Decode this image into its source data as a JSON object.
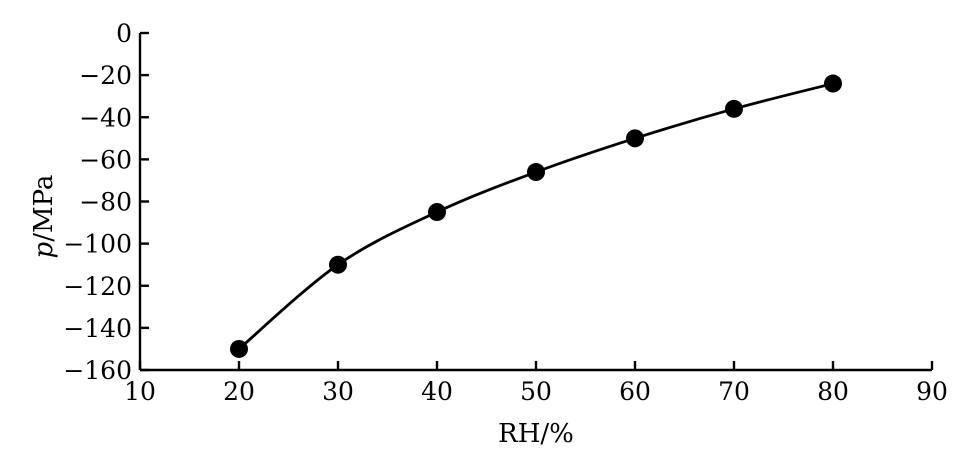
{
  "chart_data": {
    "type": "line",
    "title": "",
    "xlabel": "RH/%",
    "ylabel_italic": "p",
    "ylabel_unit": "/MPa",
    "xlim": [
      10,
      90
    ],
    "ylim": [
      -160,
      0
    ],
    "xticks": [
      10,
      20,
      30,
      40,
      50,
      60,
      70,
      80,
      90
    ],
    "yticks": [
      0,
      -20,
      -40,
      -60,
      -80,
      -100,
      -120,
      -140,
      -160
    ],
    "xtick_labels": [
      "10",
      "20",
      "30",
      "40",
      "50",
      "60",
      "70",
      "80",
      "90"
    ],
    "ytick_labels": [
      "0",
      "−20",
      "−40",
      "−60",
      "−80",
      "−100",
      "−120",
      "−140",
      "−160"
    ],
    "grid": false,
    "legend": "none",
    "series": [
      {
        "x": [
          20,
          30,
          40,
          50,
          60,
          70,
          80
        ],
        "y": [
          -150,
          -110,
          -85,
          -66,
          -50,
          -36,
          -24
        ],
        "marker": "circle",
        "color": "#000000"
      }
    ]
  }
}
